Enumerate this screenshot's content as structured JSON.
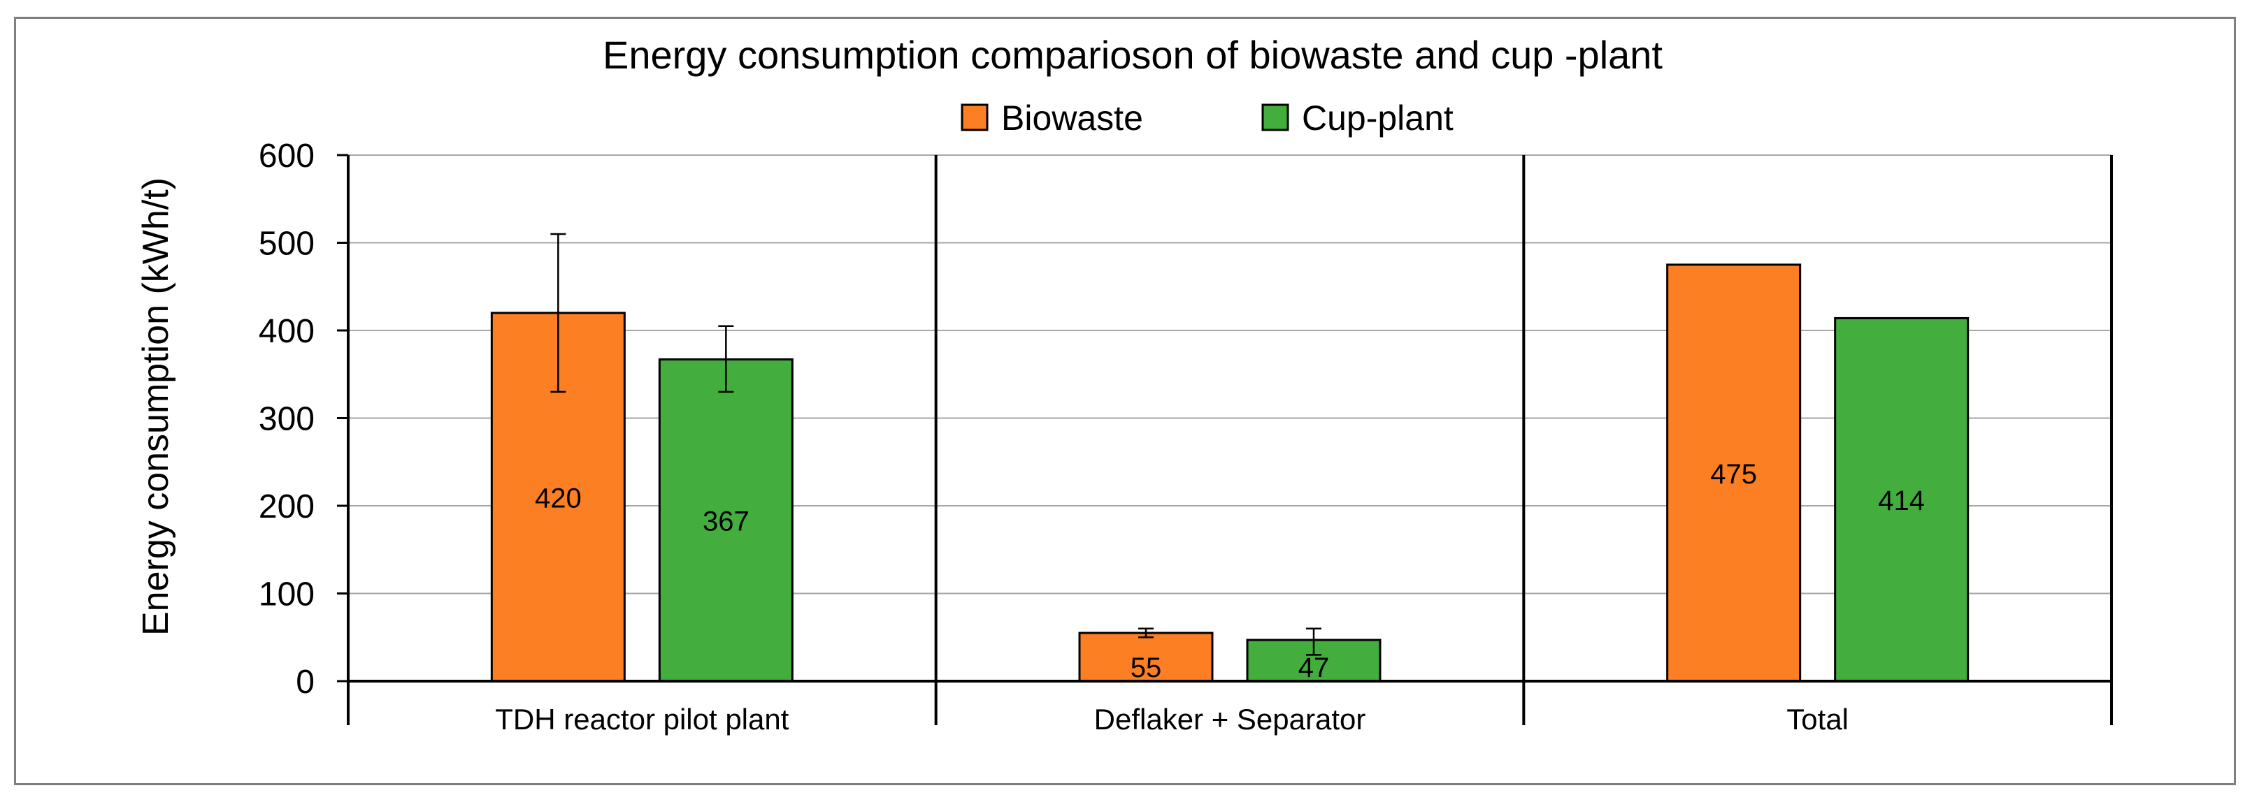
{
  "chart_data": {
    "type": "bar",
    "title": "Energy consumption comparioson of biowaste and cup   -plant",
    "xlabel": "",
    "ylabel": "Energy consumption (kWh/t)",
    "ylim": [
      0,
      600
    ],
    "yticks": [
      0,
      100,
      200,
      300,
      400,
      500,
      600
    ],
    "grid": true,
    "legend_position": "top-center",
    "categories": [
      "TDH reactor pilot plant",
      "Deflaker + Separator",
      "Total"
    ],
    "series": [
      {
        "name": "Biowaste",
        "color": "#fd7f24",
        "values": [
          420,
          55,
          475
        ],
        "labels": [
          "420",
          "55",
          "475"
        ],
        "error_low": [
          330,
          50,
          null
        ],
        "error_high": [
          510,
          60,
          null
        ]
      },
      {
        "name": "Cup-plant",
        "color": "#43ad3e",
        "values": [
          367,
          47,
          414
        ],
        "labels": [
          "367",
          "47",
          "414"
        ],
        "error_low": [
          330,
          30,
          null
        ],
        "error_high": [
          405,
          60,
          null
        ]
      }
    ]
  }
}
